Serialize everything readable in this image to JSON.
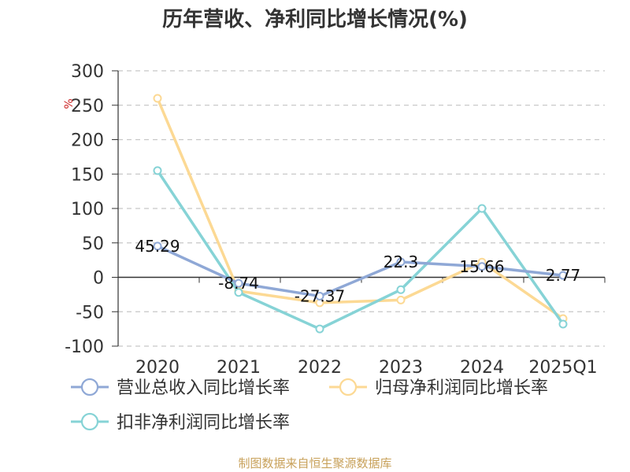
{
  "title": "历年营收、净利同比增长情况(%)",
  "source": "制图数据来自恒生聚源数据库",
  "chart_data": {
    "type": "line",
    "title": "历年营收、净利同比增长情况(%)",
    "unit": "%",
    "categories": [
      "2020",
      "2021",
      "2022",
      "2023",
      "2024",
      "2025Q1"
    ],
    "ylim": [
      -100,
      300
    ],
    "yticks": [
      -100,
      -50,
      0,
      50,
      100,
      150,
      200,
      250,
      300
    ],
    "grid": true,
    "legend_position": "bottom",
    "series": [
      {
        "name": "营业总收入同比增长率",
        "color": "#8fa8d6",
        "values": [
          45.29,
          -8.74,
          -27.37,
          22.3,
          15.66,
          2.77
        ],
        "show_labels": true
      },
      {
        "name": "归母净利润同比增长率",
        "color": "#fcd994",
        "values": [
          260,
          -20,
          -37,
          -33,
          22,
          -60
        ],
        "show_labels": false
      },
      {
        "name": "扣非净利润同比增长率",
        "color": "#86d3d6",
        "values": [
          155,
          -22,
          -75,
          -18,
          100,
          -68
        ],
        "show_labels": false
      }
    ],
    "data_labels": [
      "45.29",
      "-8.74",
      "-27.37",
      "22.3",
      "15.66",
      "2.77"
    ]
  }
}
